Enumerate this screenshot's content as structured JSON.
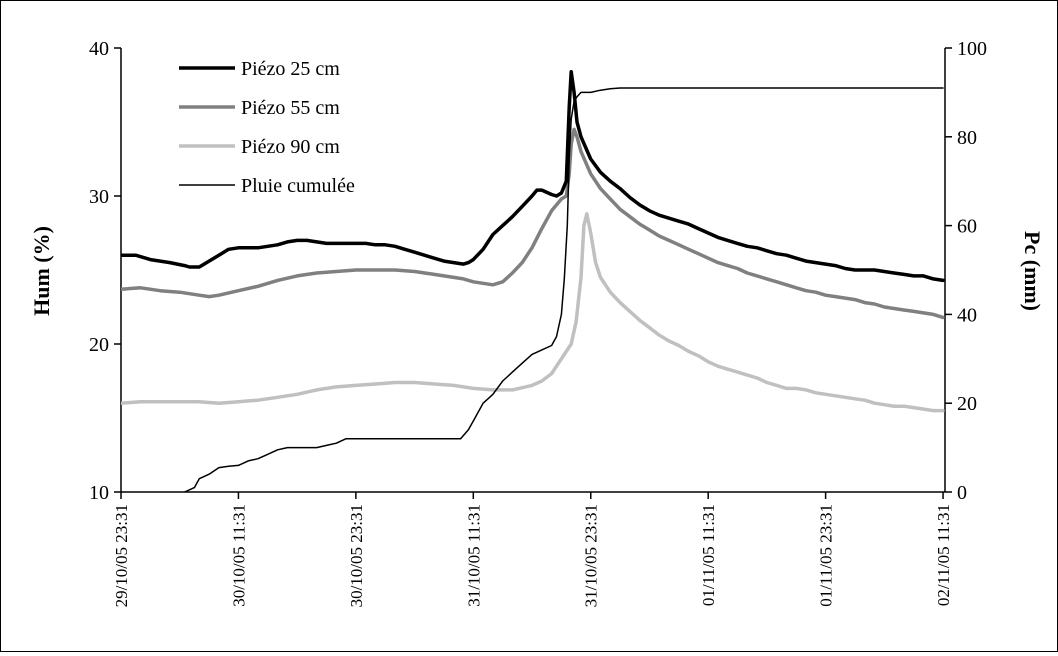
{
  "chart_data": {
    "type": "line",
    "ylabel": "Hum (%)",
    "y2label": "Pc (mm)",
    "ylim": [
      10,
      40
    ],
    "y2lim": [
      0,
      100
    ],
    "yticks": [
      10,
      20,
      30,
      40
    ],
    "y2ticks": [
      0,
      20,
      40,
      60,
      80,
      100
    ],
    "x_tick_labels": [
      "29/10/05 23:31",
      "30/10/05 11:31",
      "30/10/05 23:31",
      "31/10/05 11:31",
      "31/10/05 23:31",
      "01/11/05 11:31",
      "01/11/05 23:31",
      "02/11/05 11:31"
    ],
    "x_tick_hours": [
      0,
      12,
      24,
      36,
      48,
      60,
      72,
      84
    ],
    "xlim_hours": [
      0,
      84.2
    ],
    "legend_position": "top-left",
    "series": [
      {
        "name": "Piézo 25 cm",
        "axis": "left",
        "color": "#000000",
        "width": 3.5,
        "points": [
          [
            0,
            26.0
          ],
          [
            1.5,
            26.0
          ],
          [
            3,
            25.7
          ],
          [
            5,
            25.5
          ],
          [
            6.5,
            25.3
          ],
          [
            7,
            25.2
          ],
          [
            8,
            25.2
          ],
          [
            9,
            25.6
          ],
          [
            10,
            26.0
          ],
          [
            11,
            26.4
          ],
          [
            12,
            26.5
          ],
          [
            13,
            26.5
          ],
          [
            14,
            26.5
          ],
          [
            15,
            26.6
          ],
          [
            16,
            26.7
          ],
          [
            17,
            26.9
          ],
          [
            18,
            27.0
          ],
          [
            19,
            27.0
          ],
          [
            20,
            26.9
          ],
          [
            21,
            26.8
          ],
          [
            22,
            26.8
          ],
          [
            23,
            26.8
          ],
          [
            24,
            26.8
          ],
          [
            25,
            26.8
          ],
          [
            26,
            26.7
          ],
          [
            27,
            26.7
          ],
          [
            28,
            26.6
          ],
          [
            29,
            26.4
          ],
          [
            30,
            26.2
          ],
          [
            31,
            26.0
          ],
          [
            32,
            25.8
          ],
          [
            33,
            25.6
          ],
          [
            34,
            25.5
          ],
          [
            35,
            25.4
          ],
          [
            35.5,
            25.5
          ],
          [
            36,
            25.7
          ],
          [
            37,
            26.4
          ],
          [
            38,
            27.4
          ],
          [
            39,
            28.0
          ],
          [
            40,
            28.6
          ],
          [
            41,
            29.3
          ],
          [
            42,
            30.0
          ],
          [
            42.5,
            30.4
          ],
          [
            43,
            30.4
          ],
          [
            44,
            30.1
          ],
          [
            44.5,
            30.0
          ],
          [
            45,
            30.2
          ],
          [
            45.5,
            31.0
          ],
          [
            45.8,
            36.0
          ],
          [
            46,
            38.4
          ],
          [
            46.3,
            37.0
          ],
          [
            46.6,
            35.0
          ],
          [
            47,
            34.0
          ],
          [
            48,
            32.5
          ],
          [
            49,
            31.6
          ],
          [
            50,
            31.0
          ],
          [
            51,
            30.5
          ],
          [
            52,
            29.9
          ],
          [
            53,
            29.4
          ],
          [
            54,
            29.0
          ],
          [
            55,
            28.7
          ],
          [
            56,
            28.5
          ],
          [
            57,
            28.3
          ],
          [
            58,
            28.1
          ],
          [
            59,
            27.8
          ],
          [
            60,
            27.5
          ],
          [
            61,
            27.2
          ],
          [
            62,
            27.0
          ],
          [
            63,
            26.8
          ],
          [
            64,
            26.6
          ],
          [
            65,
            26.5
          ],
          [
            66,
            26.3
          ],
          [
            67,
            26.1
          ],
          [
            68,
            26.0
          ],
          [
            69,
            25.8
          ],
          [
            70,
            25.6
          ],
          [
            71,
            25.5
          ],
          [
            72,
            25.4
          ],
          [
            73,
            25.3
          ],
          [
            74,
            25.1
          ],
          [
            75,
            25.0
          ],
          [
            76,
            25.0
          ],
          [
            77,
            25.0
          ],
          [
            78,
            24.9
          ],
          [
            79,
            24.8
          ],
          [
            80,
            24.7
          ],
          [
            81,
            24.6
          ],
          [
            82,
            24.6
          ],
          [
            83,
            24.4
          ],
          [
            84,
            24.3
          ]
        ]
      },
      {
        "name": "Piézo 55 cm",
        "axis": "left",
        "color": "#808080",
        "width": 3.5,
        "points": [
          [
            0,
            23.7
          ],
          [
            2,
            23.8
          ],
          [
            4,
            23.6
          ],
          [
            6,
            23.5
          ],
          [
            8,
            23.3
          ],
          [
            9,
            23.2
          ],
          [
            10,
            23.3
          ],
          [
            12,
            23.6
          ],
          [
            14,
            23.9
          ],
          [
            16,
            24.3
          ],
          [
            18,
            24.6
          ],
          [
            20,
            24.8
          ],
          [
            22,
            24.9
          ],
          [
            24,
            25.0
          ],
          [
            26,
            25.0
          ],
          [
            28,
            25.0
          ],
          [
            30,
            24.9
          ],
          [
            32,
            24.7
          ],
          [
            34,
            24.5
          ],
          [
            35,
            24.4
          ],
          [
            36,
            24.2
          ],
          [
            37,
            24.1
          ],
          [
            38,
            24.0
          ],
          [
            39,
            24.2
          ],
          [
            40,
            24.8
          ],
          [
            41,
            25.5
          ],
          [
            42,
            26.5
          ],
          [
            43,
            27.8
          ],
          [
            44,
            29.0
          ],
          [
            45,
            29.8
          ],
          [
            45.5,
            30.0
          ],
          [
            45.8,
            31.5
          ],
          [
            46,
            33.5
          ],
          [
            46.3,
            34.5
          ],
          [
            46.6,
            34.0
          ],
          [
            47,
            33.0
          ],
          [
            48,
            31.5
          ],
          [
            49,
            30.5
          ],
          [
            50,
            29.8
          ],
          [
            51,
            29.1
          ],
          [
            52,
            28.6
          ],
          [
            53,
            28.1
          ],
          [
            54,
            27.7
          ],
          [
            55,
            27.3
          ],
          [
            56,
            27.0
          ],
          [
            57,
            26.7
          ],
          [
            58,
            26.4
          ],
          [
            59,
            26.1
          ],
          [
            60,
            25.8
          ],
          [
            61,
            25.5
          ],
          [
            62,
            25.3
          ],
          [
            63,
            25.1
          ],
          [
            64,
            24.8
          ],
          [
            65,
            24.6
          ],
          [
            66,
            24.4
          ],
          [
            67,
            24.2
          ],
          [
            68,
            24.0
          ],
          [
            69,
            23.8
          ],
          [
            70,
            23.6
          ],
          [
            71,
            23.5
          ],
          [
            72,
            23.3
          ],
          [
            73,
            23.2
          ],
          [
            74,
            23.1
          ],
          [
            75,
            23.0
          ],
          [
            76,
            22.8
          ],
          [
            77,
            22.7
          ],
          [
            78,
            22.5
          ],
          [
            79,
            22.4
          ],
          [
            80,
            22.3
          ],
          [
            81,
            22.2
          ],
          [
            82,
            22.1
          ],
          [
            83,
            22.0
          ],
          [
            84,
            21.8
          ]
        ]
      },
      {
        "name": "Piézo 90 cm",
        "axis": "left",
        "color": "#c0c0c0",
        "width": 3.5,
        "points": [
          [
            0,
            16.0
          ],
          [
            2,
            16.1
          ],
          [
            4,
            16.1
          ],
          [
            6,
            16.1
          ],
          [
            8,
            16.1
          ],
          [
            10,
            16.0
          ],
          [
            12,
            16.1
          ],
          [
            14,
            16.2
          ],
          [
            16,
            16.4
          ],
          [
            18,
            16.6
          ],
          [
            20,
            16.9
          ],
          [
            22,
            17.1
          ],
          [
            24,
            17.2
          ],
          [
            26,
            17.3
          ],
          [
            28,
            17.4
          ],
          [
            30,
            17.4
          ],
          [
            32,
            17.3
          ],
          [
            34,
            17.2
          ],
          [
            36,
            17.0
          ],
          [
            38,
            16.9
          ],
          [
            40,
            16.9
          ],
          [
            42,
            17.2
          ],
          [
            43,
            17.5
          ],
          [
            44,
            18.0
          ],
          [
            45,
            19.0
          ],
          [
            46,
            20.0
          ],
          [
            46.5,
            21.5
          ],
          [
            47,
            24.5
          ],
          [
            47.3,
            28.0
          ],
          [
            47.6,
            28.8
          ],
          [
            48,
            27.5
          ],
          [
            48.5,
            25.5
          ],
          [
            49,
            24.5
          ],
          [
            50,
            23.5
          ],
          [
            51,
            22.8
          ],
          [
            52,
            22.2
          ],
          [
            53,
            21.6
          ],
          [
            54,
            21.1
          ],
          [
            55,
            20.6
          ],
          [
            56,
            20.2
          ],
          [
            57,
            19.9
          ],
          [
            58,
            19.5
          ],
          [
            59,
            19.2
          ],
          [
            60,
            18.8
          ],
          [
            61,
            18.5
          ],
          [
            62,
            18.3
          ],
          [
            63,
            18.1
          ],
          [
            64,
            17.9
          ],
          [
            65,
            17.7
          ],
          [
            66,
            17.4
          ],
          [
            67,
            17.2
          ],
          [
            68,
            17.0
          ],
          [
            69,
            17.0
          ],
          [
            70,
            16.9
          ],
          [
            71,
            16.7
          ],
          [
            72,
            16.6
          ],
          [
            73,
            16.5
          ],
          [
            74,
            16.4
          ],
          [
            75,
            16.3
          ],
          [
            76,
            16.2
          ],
          [
            77,
            16.0
          ],
          [
            78,
            15.9
          ],
          [
            79,
            15.8
          ],
          [
            80,
            15.8
          ],
          [
            81,
            15.7
          ],
          [
            82,
            15.6
          ],
          [
            83,
            15.5
          ],
          [
            84,
            15.5
          ]
        ]
      },
      {
        "name": "Pluie cumulée",
        "axis": "right",
        "color": "#000000",
        "width": 1.5,
        "points": [
          [
            6.5,
            0
          ],
          [
            7.5,
            1
          ],
          [
            8,
            3
          ],
          [
            9,
            4
          ],
          [
            10,
            5.5
          ],
          [
            11,
            5.8
          ],
          [
            12,
            6
          ],
          [
            13,
            7
          ],
          [
            14,
            7.5
          ],
          [
            15,
            8.5
          ],
          [
            16,
            9.5
          ],
          [
            17,
            10
          ],
          [
            18,
            10
          ],
          [
            19,
            10
          ],
          [
            20,
            10
          ],
          [
            21,
            10.5
          ],
          [
            22,
            11
          ],
          [
            23,
            12
          ],
          [
            24,
            12
          ],
          [
            25,
            12
          ],
          [
            26,
            12
          ],
          [
            27,
            12
          ],
          [
            28,
            12
          ],
          [
            29,
            12
          ],
          [
            30,
            12
          ],
          [
            31,
            12
          ],
          [
            32,
            12
          ],
          [
            33,
            12
          ],
          [
            34,
            12
          ],
          [
            34.7,
            12
          ],
          [
            35.5,
            14
          ],
          [
            36,
            16
          ],
          [
            36.5,
            18
          ],
          [
            37,
            20
          ],
          [
            37.5,
            21
          ],
          [
            38,
            22
          ],
          [
            39,
            25
          ],
          [
            40,
            27
          ],
          [
            41,
            29
          ],
          [
            42,
            31
          ],
          [
            43,
            32
          ],
          [
            44,
            33
          ],
          [
            44.5,
            35
          ],
          [
            45,
            40
          ],
          [
            45.3,
            48
          ],
          [
            45.6,
            60
          ],
          [
            45.8,
            75
          ],
          [
            46,
            84
          ],
          [
            46.3,
            88
          ],
          [
            46.6,
            89
          ],
          [
            47,
            90
          ],
          [
            48,
            90
          ],
          [
            49,
            90.5
          ],
          [
            50,
            90.8
          ],
          [
            51,
            91
          ],
          [
            84,
            91
          ]
        ]
      }
    ]
  }
}
